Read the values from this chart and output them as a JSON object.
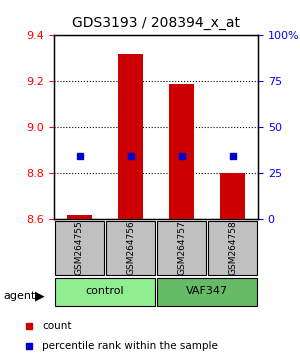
{
  "title": "GDS3193 / 208394_x_at",
  "samples": [
    "GSM264755",
    "GSM264756",
    "GSM264757",
    "GSM264758"
  ],
  "groups": [
    "control",
    "control",
    "VAF347",
    "VAF347"
  ],
  "group_labels": [
    "control",
    "VAF347"
  ],
  "group_colors": [
    "#90EE90",
    "#4CAF50"
  ],
  "ylim_left": [
    8.6,
    9.4
  ],
  "ylim_right": [
    0,
    100
  ],
  "yticks_left": [
    8.6,
    8.8,
    9.0,
    9.2,
    9.4
  ],
  "yticks_right": [
    0,
    25,
    50,
    75,
    100
  ],
  "ytick_labels_right": [
    "0",
    "25",
    "50",
    "75",
    "100%"
  ],
  "bar_bottoms": [
    8.6,
    8.6,
    8.6,
    8.6
  ],
  "bar_tops": [
    8.62,
    9.32,
    9.19,
    8.8
  ],
  "percentile_values": [
    8.875,
    8.875,
    8.875,
    8.875
  ],
  "percentile_pct": [
    37,
    37,
    37,
    37
  ],
  "bar_color": "#CC0000",
  "percentile_color": "#0000CC",
  "agent_label": "agent",
  "legend_count_label": "count",
  "legend_pct_label": "percentile rank within the sample",
  "sample_box_color": "#C0C0C0",
  "group_box_colors": [
    "#90EE90",
    "#90EE90"
  ]
}
